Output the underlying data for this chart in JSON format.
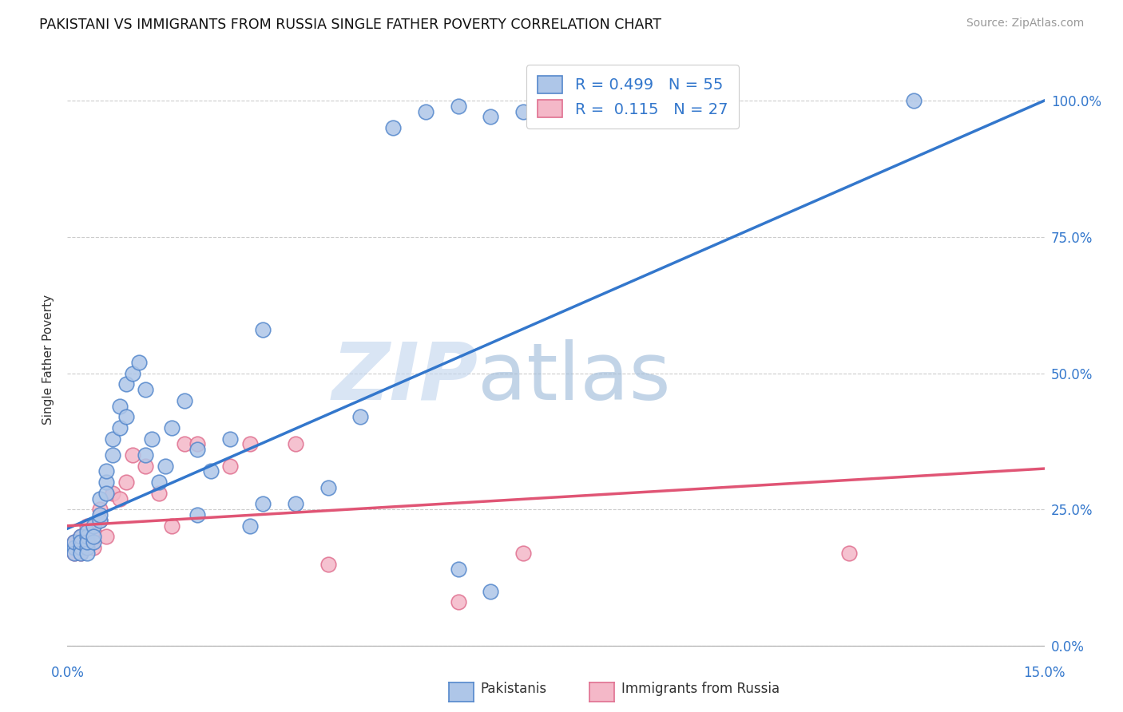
{
  "title": "PAKISTANI VS IMMIGRANTS FROM RUSSIA SINGLE FATHER POVERTY CORRELATION CHART",
  "source": "Source: ZipAtlas.com",
  "ylabel": "Single Father Poverty",
  "legend_label_blue": "Pakistanis",
  "legend_label_pink": "Immigrants from Russia",
  "watermark_zip": "ZIP",
  "watermark_atlas": "atlas",
  "xmin": 0.0,
  "xmax": 0.15,
  "ymin": -0.03,
  "ymax": 1.08,
  "blue_color": "#aec6e8",
  "pink_color": "#f4b8c8",
  "blue_edge_color": "#5588cc",
  "pink_edge_color": "#e07090",
  "blue_line_color": "#3377cc",
  "pink_line_color": "#e05575",
  "background_color": "#ffffff",
  "grid_color": "#cccccc",
  "blue_line_x0": 0.0,
  "blue_line_y0": 0.215,
  "blue_line_x1": 0.15,
  "blue_line_y1": 1.0,
  "pink_line_x0": 0.0,
  "pink_line_y0": 0.22,
  "pink_line_x1": 0.15,
  "pink_line_y1": 0.325,
  "blue_scatter_x": [
    0.001,
    0.001,
    0.001,
    0.002,
    0.002,
    0.002,
    0.002,
    0.003,
    0.003,
    0.003,
    0.003,
    0.003,
    0.004,
    0.004,
    0.004,
    0.005,
    0.005,
    0.005,
    0.006,
    0.006,
    0.006,
    0.007,
    0.007,
    0.008,
    0.008,
    0.009,
    0.009,
    0.01,
    0.011,
    0.012,
    0.012,
    0.013,
    0.014,
    0.015,
    0.016,
    0.018,
    0.02,
    0.022,
    0.025,
    0.028,
    0.03,
    0.035,
    0.04,
    0.045,
    0.05,
    0.055,
    0.06,
    0.065,
    0.07,
    0.08,
    0.02,
    0.03,
    0.065,
    0.13,
    0.06
  ],
  "blue_scatter_y": [
    0.18,
    0.17,
    0.19,
    0.18,
    0.17,
    0.2,
    0.19,
    0.18,
    0.2,
    0.17,
    0.19,
    0.21,
    0.19,
    0.22,
    0.2,
    0.23,
    0.27,
    0.24,
    0.3,
    0.28,
    0.32,
    0.35,
    0.38,
    0.4,
    0.44,
    0.42,
    0.48,
    0.5,
    0.52,
    0.47,
    0.35,
    0.38,
    0.3,
    0.33,
    0.4,
    0.45,
    0.24,
    0.32,
    0.38,
    0.22,
    0.58,
    0.26,
    0.29,
    0.42,
    0.95,
    0.98,
    0.99,
    0.97,
    0.98,
    0.99,
    0.36,
    0.26,
    0.1,
    1.0,
    0.14
  ],
  "pink_scatter_x": [
    0.001,
    0.001,
    0.002,
    0.002,
    0.003,
    0.003,
    0.004,
    0.004,
    0.005,
    0.005,
    0.006,
    0.007,
    0.008,
    0.009,
    0.01,
    0.012,
    0.014,
    0.016,
    0.018,
    0.02,
    0.025,
    0.028,
    0.035,
    0.04,
    0.06,
    0.07,
    0.12
  ],
  "pink_scatter_y": [
    0.17,
    0.19,
    0.17,
    0.2,
    0.19,
    0.22,
    0.18,
    0.21,
    0.23,
    0.25,
    0.2,
    0.28,
    0.27,
    0.3,
    0.35,
    0.33,
    0.28,
    0.22,
    0.37,
    0.37,
    0.33,
    0.37,
    0.37,
    0.15,
    0.08,
    0.17,
    0.17
  ]
}
